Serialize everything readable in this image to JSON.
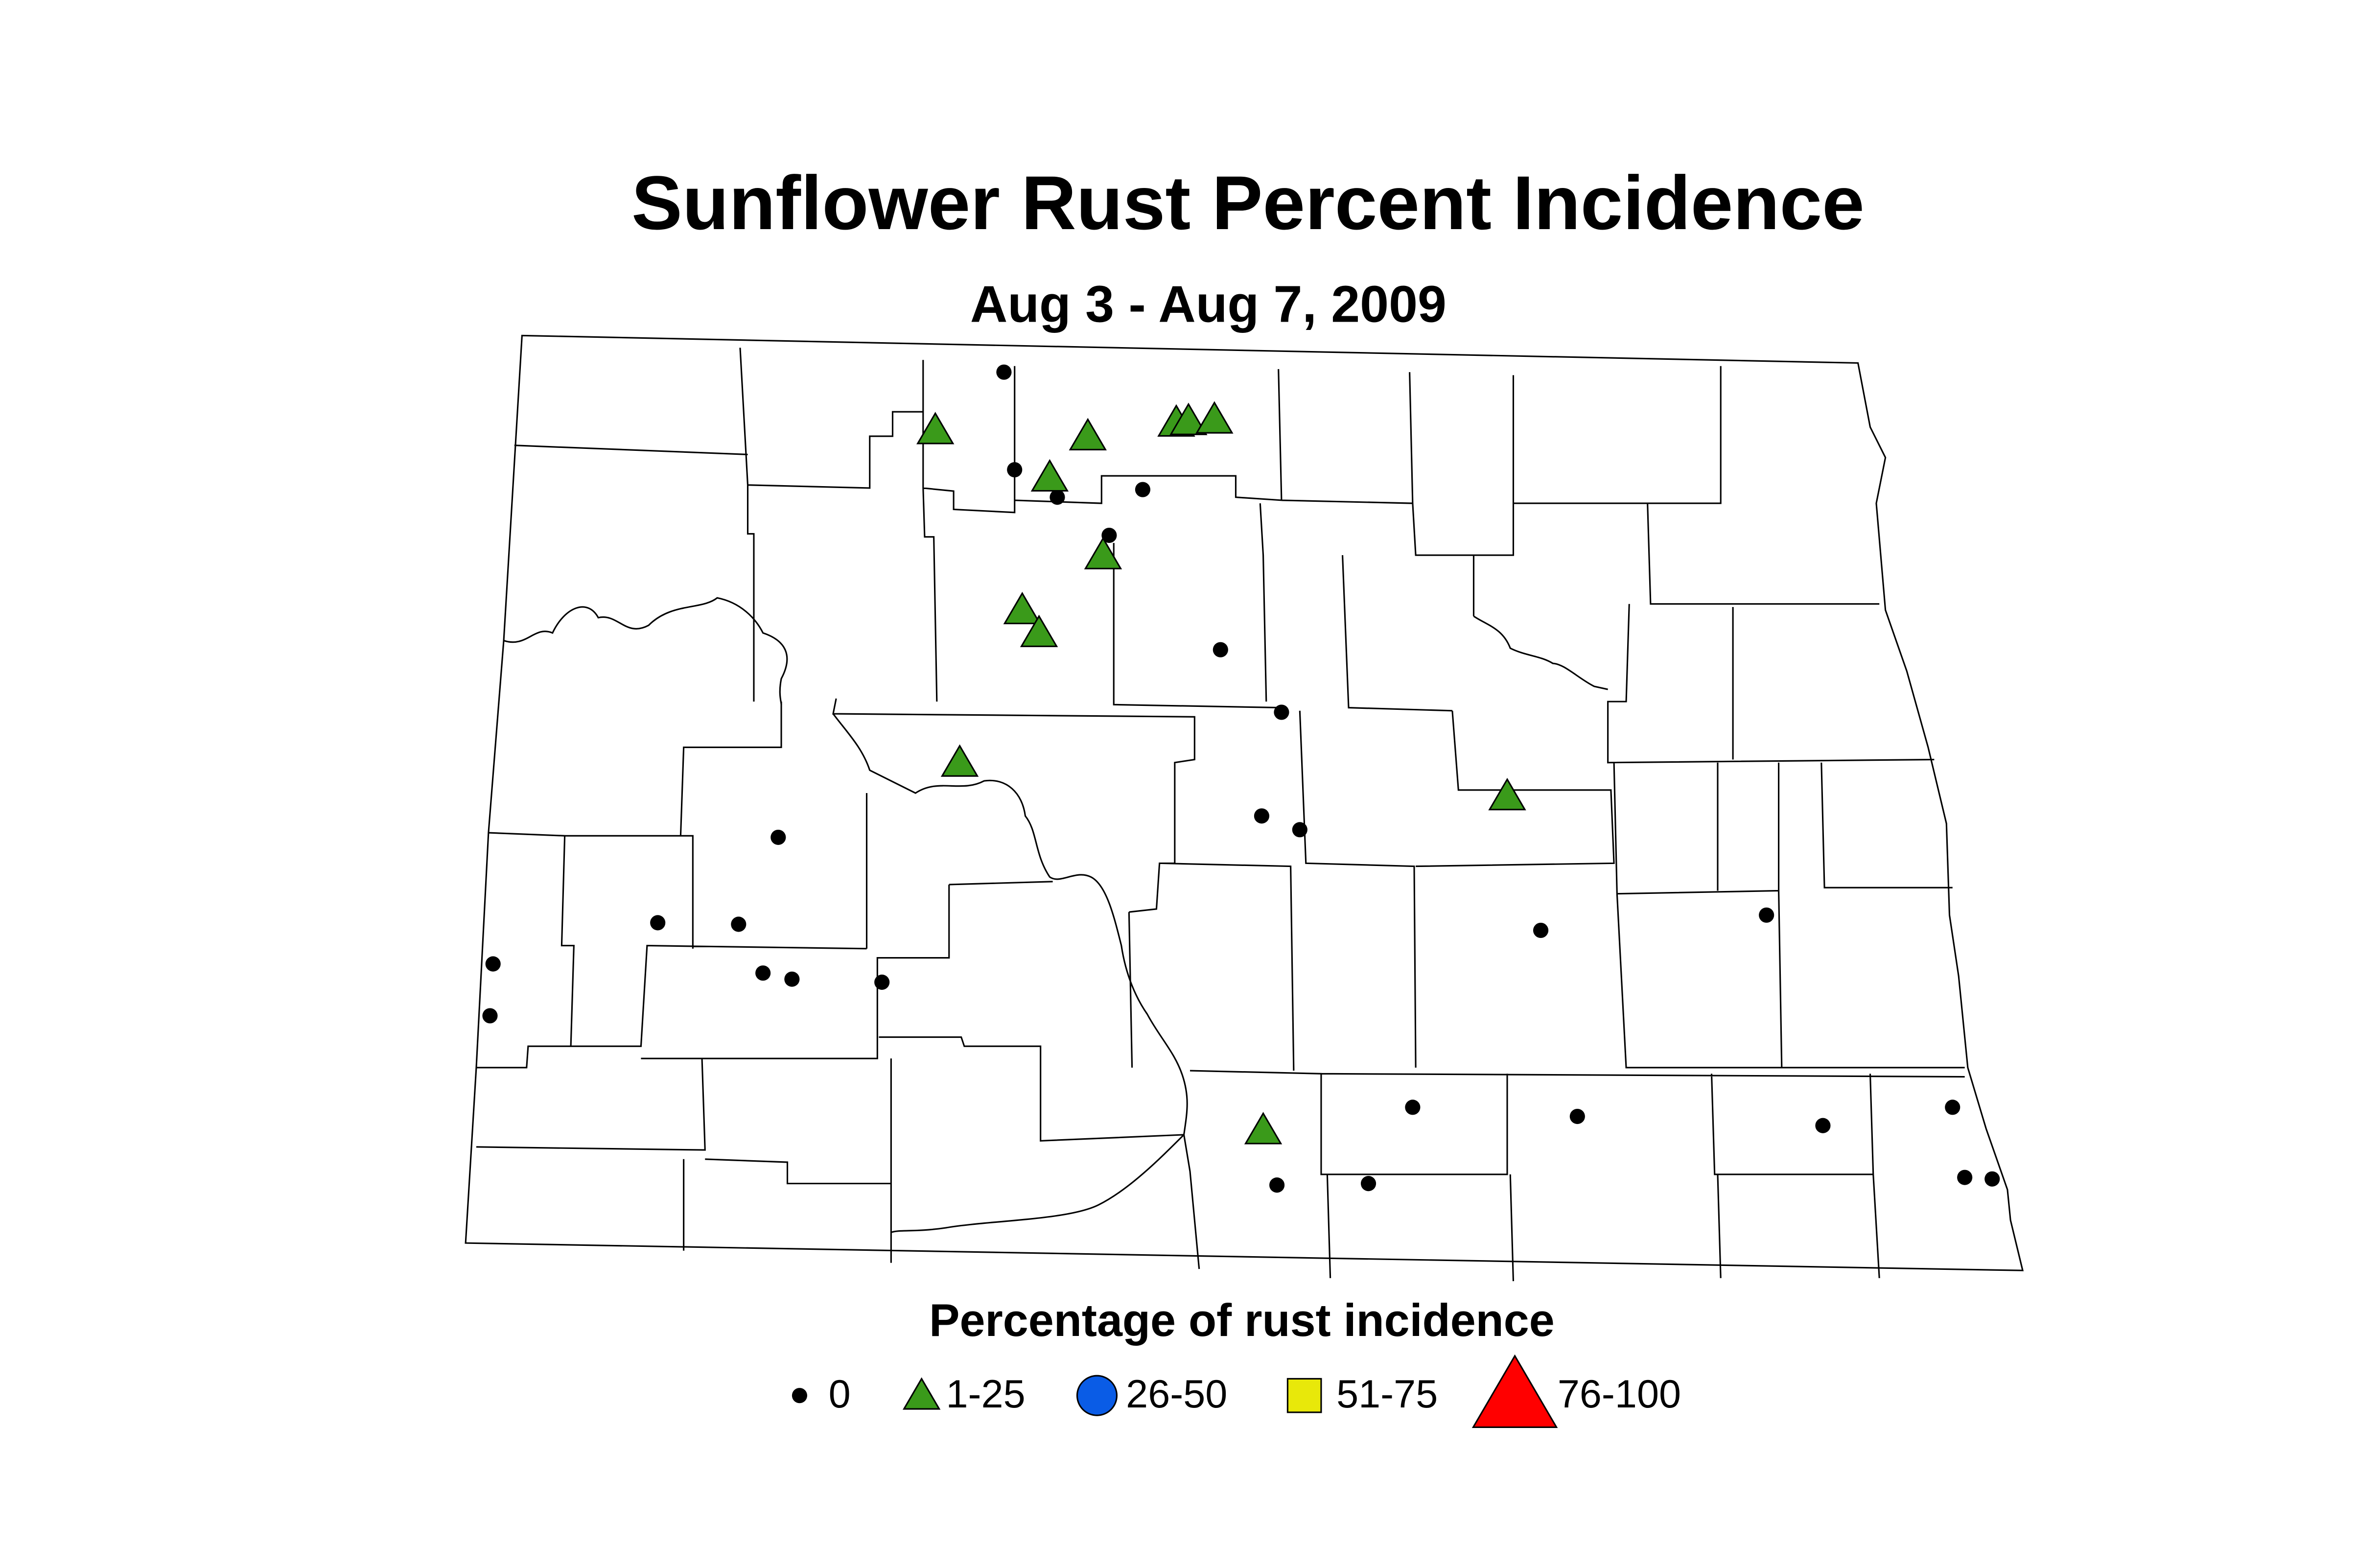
{
  "title": "Sunflower Rust Percent Incidence",
  "subtitle": "Aug 3 - Aug 7, 2009",
  "legend": {
    "title": "Percentage of rust incidence",
    "items": [
      {
        "label": "0",
        "shape": "dot",
        "color": "#000000"
      },
      {
        "label": "1-25",
        "shape": "triangle",
        "color": "#3a9a1a"
      },
      {
        "label": "26-50",
        "shape": "circle",
        "color": "#0a5ce6"
      },
      {
        "label": "51-75",
        "shape": "square",
        "color": "#e8e80a"
      },
      {
        "label": "76-100",
        "shape": "big-triangle",
        "color": "#ff0000"
      }
    ]
  }
}
